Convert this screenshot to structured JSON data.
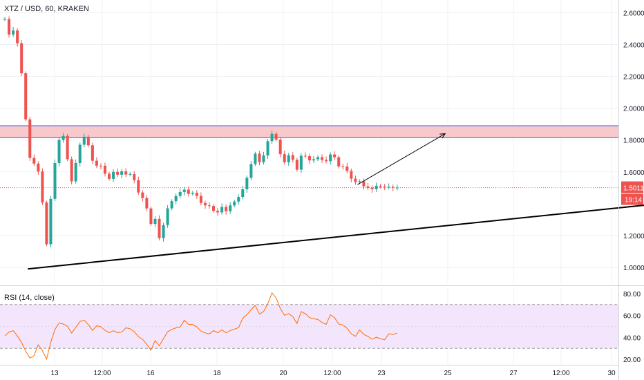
{
  "colors": {
    "up": "#26a69a",
    "down": "#ef5350",
    "resistance_zone_fill": "#f8c9cb",
    "resistance_zone_line": "#2962ff",
    "trendline": "#000000",
    "rsi_line": "#ff6d00",
    "rsi_band": "#f3e5fc",
    "grid": "#eef0f3",
    "price_badge": "#ef5350",
    "badge_text": "#ffffff"
  },
  "icons": {
    "drawn_arrow": "arrow-up-right-icon"
  },
  "chart_data": [
    {
      "type": "candlestick",
      "title": "XTZ / USD, 60, KRAKEN",
      "symbol": "XTZ / USD",
      "interval": "60",
      "exchange": "KRAKEN",
      "x_ticks": [
        "13",
        "12:00",
        "16",
        "18",
        "20",
        "12:00",
        "23",
        "25",
        "27",
        "12:00",
        "30"
      ],
      "y_ticks": [
        "2.6000",
        "2.4000",
        "2.2000",
        "2.0000",
        "1.8000",
        "1.6000",
        "1.2000",
        "1.0000"
      ],
      "ylim": [
        0.9,
        2.68
      ],
      "grid": true,
      "last_price_label": "1.5011",
      "countdown_label": "19:14",
      "last_price": 1.501,
      "resistance_zone": [
        1.815,
        1.89
      ],
      "trendline": {
        "from": {
          "index": 6,
          "price": 0.99
        },
        "to": {
          "index": 290,
          "price": 1.76
        }
      },
      "projection_arrow": {
        "from": {
          "index": 85,
          "price": 1.52
        },
        "to": {
          "index": 106,
          "price": 1.84
        }
      },
      "bars_total": 290,
      "candles_shown": 84,
      "closes": [
        2.56,
        2.45,
        2.5,
        2.36,
        2.1,
        1.7,
        1.66,
        1.62,
        1.4,
        1.1,
        1.55,
        1.72,
        1.88,
        1.74,
        1.52,
        1.65,
        1.78,
        1.83,
        1.74,
        1.62,
        1.66,
        1.6,
        1.55,
        1.6,
        1.58,
        1.61,
        1.57,
        1.6,
        1.48,
        1.45,
        1.38,
        1.27,
        1.31,
        1.14,
        1.34,
        1.4,
        1.44,
        1.47,
        1.49,
        1.46,
        1.47,
        1.44,
        1.38,
        1.4,
        1.36,
        1.34,
        1.38,
        1.35,
        1.4,
        1.42,
        1.46,
        1.53,
        1.63,
        1.72,
        1.66,
        1.71,
        1.82,
        1.85,
        1.76,
        1.64,
        1.71,
        1.68,
        1.61,
        1.72,
        1.69,
        1.66,
        1.7,
        1.68,
        1.66,
        1.71,
        1.69,
        1.62,
        1.64,
        1.58,
        1.53,
        1.55,
        1.51,
        1.5,
        1.49,
        1.52,
        1.5,
        1.51,
        1.5,
        1.501
      ]
    },
    {
      "type": "line",
      "title": "RSI (14, close)",
      "y_ticks": [
        "80.00",
        "60.00",
        "40.00",
        "20.00"
      ],
      "ylim": [
        15,
        85
      ],
      "band": [
        30,
        70
      ],
      "values": [
        44,
        42,
        45,
        38,
        33,
        22,
        25,
        31,
        26,
        18,
        42,
        52,
        58,
        50,
        41,
        48,
        55,
        57,
        52,
        47,
        49,
        46,
        44,
        47,
        46,
        48,
        45,
        47,
        41,
        40,
        36,
        31,
        35,
        29,
        43,
        47,
        50,
        52,
        53,
        50,
        51,
        49,
        45,
        47,
        44,
        42,
        46,
        44,
        48,
        50,
        53,
        57,
        63,
        70,
        62,
        66,
        76,
        79,
        70,
        59,
        63,
        61,
        55,
        62,
        59,
        56,
        58,
        56,
        54,
        58,
        56,
        50,
        52,
        47,
        43,
        45,
        41,
        40,
        38,
        42,
        40,
        41,
        40,
        43
      ]
    }
  ]
}
